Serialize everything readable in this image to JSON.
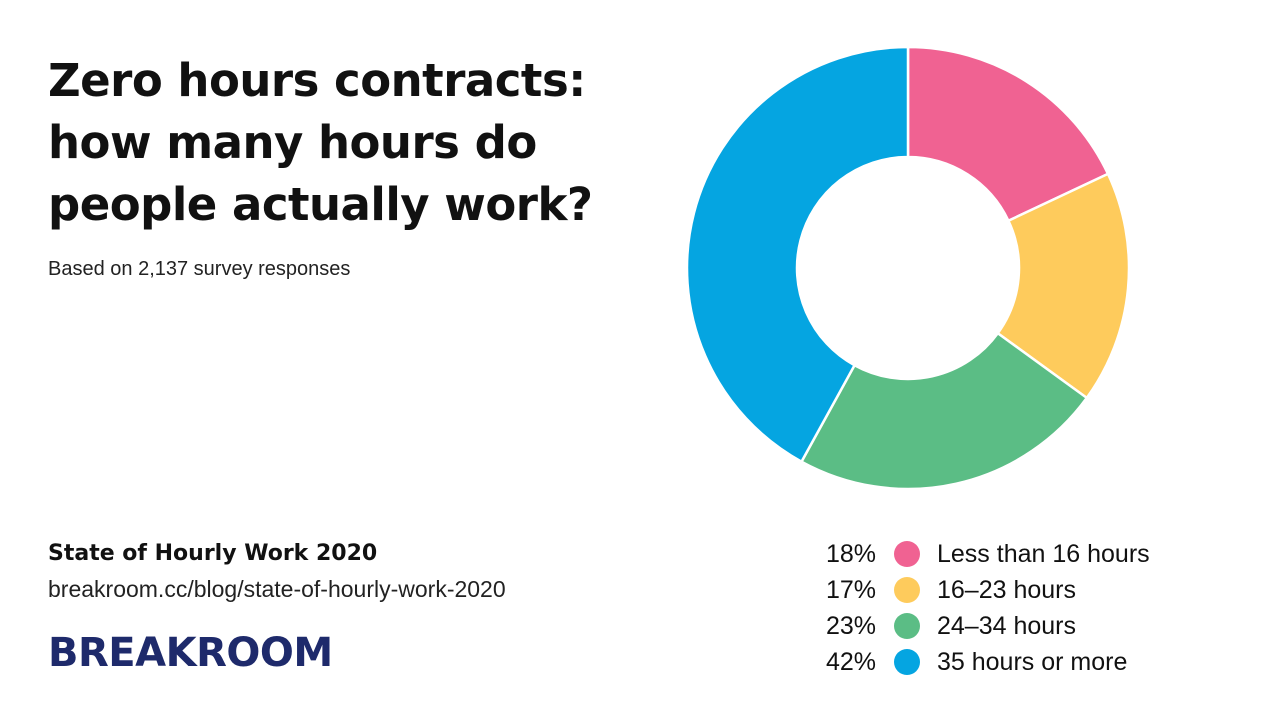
{
  "header": {
    "title_lines": [
      "Zero hours contracts:",
      "how many hours do",
      "people actually work?"
    ],
    "subtitle": "Based on 2,137 survey responses"
  },
  "footer": {
    "source_title": "State of Hourly Work 2020",
    "source_url": "breakroom.cc/blog/state-of-hourly-work-2020",
    "logo_text": "BREAKROOM"
  },
  "chart_data": {
    "type": "pie",
    "donut": true,
    "title": "Zero hours contracts: how many hours do people actually work?",
    "categories": [
      "Less than 16 hours",
      "16–23 hours",
      "24–34 hours",
      "35 hours or more"
    ],
    "values": [
      18,
      17,
      23,
      42
    ],
    "labels": [
      "18%",
      "17%",
      "23%",
      "42%"
    ],
    "colors": [
      "#f06292",
      "#fecb5c",
      "#5bbd85",
      "#05a5e1"
    ],
    "legend_position": "bottom-right"
  },
  "colors": {
    "brand": "#1e2a6b",
    "background": "#ffffff"
  }
}
